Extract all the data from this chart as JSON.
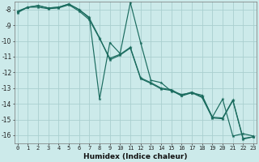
{
  "title": "",
  "xlabel": "Humidex (Indice chaleur)",
  "background_color": "#cceaea",
  "grid_color": "#aacfcf",
  "line_color": "#1a6b5e",
  "xlim": [
    0,
    23
  ],
  "ylim": [
    -16.5,
    -7.5
  ],
  "xticks": [
    0,
    1,
    2,
    3,
    4,
    5,
    6,
    7,
    8,
    9,
    10,
    11,
    12,
    13,
    14,
    15,
    16,
    17,
    18,
    19,
    20,
    21,
    22,
    23
  ],
  "yticks": [
    -8,
    -9,
    -10,
    -11,
    -12,
    -13,
    -14,
    -15,
    -16
  ],
  "series1_y": [
    -8.2,
    -7.85,
    -7.75,
    -7.9,
    -7.85,
    -7.65,
    -8.0,
    -8.5,
    -13.7,
    -10.1,
    -10.8,
    -7.55,
    -10.1,
    -12.5,
    -12.65,
    -13.2,
    -13.4,
    -13.3,
    -13.45,
    -14.85,
    -13.7,
    -16.05,
    -15.9,
    -16.05
  ],
  "series2_y": [
    -8.15,
    -7.85,
    -7.85,
    -7.95,
    -7.9,
    -7.7,
    -8.1,
    -8.65,
    -9.85,
    -11.1,
    -10.85,
    -10.4,
    -12.35,
    -12.65,
    -13.0,
    -13.1,
    -13.45,
    -13.25,
    -13.55,
    -14.85,
    -14.9,
    -13.75,
    -16.2,
    -16.1
  ],
  "series3_y": [
    -8.1,
    -7.85,
    -7.75,
    -7.9,
    -7.85,
    -7.65,
    -8.0,
    -8.55,
    -9.8,
    -11.2,
    -10.9,
    -10.45,
    -12.4,
    -12.7,
    -13.05,
    -13.15,
    -13.5,
    -13.3,
    -13.6,
    -14.9,
    -14.95,
    -13.8,
    -16.25,
    -16.1
  ]
}
